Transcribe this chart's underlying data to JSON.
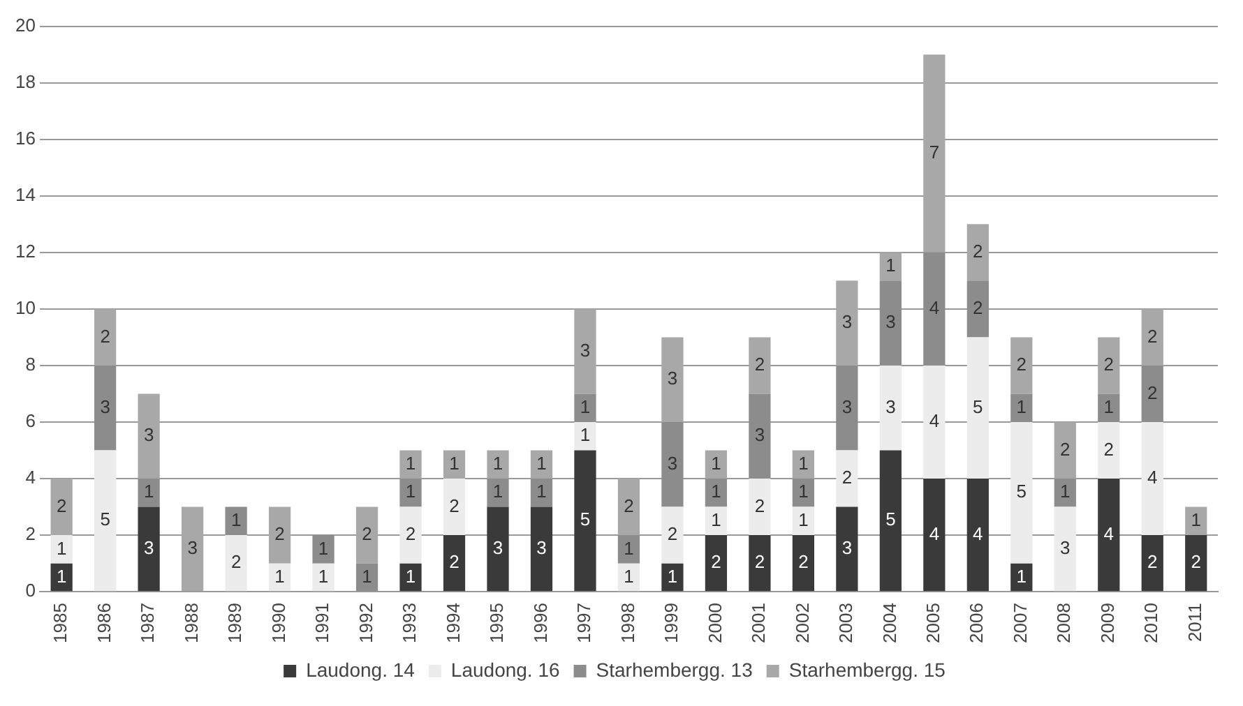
{
  "chart_data": {
    "type": "bar",
    "stacked": true,
    "data_labels": true,
    "grid": "y",
    "legend": "bottom",
    "categories": [
      "1985",
      "1986",
      "1987",
      "1988",
      "1989",
      "1990",
      "1991",
      "1992",
      "1993",
      "1994",
      "1995",
      "1996",
      "1997",
      "1998",
      "1999",
      "2000",
      "2001",
      "2002",
      "2003",
      "2004",
      "2005",
      "2006",
      "2007",
      "2008",
      "2009",
      "2010",
      "2011"
    ],
    "ylim": [
      0,
      20
    ],
    "yticks": [
      0,
      2,
      4,
      6,
      8,
      10,
      12,
      14,
      16,
      18,
      20
    ],
    "series": [
      {
        "name": "Laudong. 14",
        "color": "#3a3a3a",
        "values": [
          1,
          null,
          3,
          null,
          null,
          null,
          null,
          null,
          1,
          2,
          3,
          3,
          5,
          null,
          1,
          2,
          2,
          2,
          3,
          5,
          4,
          4,
          1,
          null,
          4,
          2,
          2
        ]
      },
      {
        "name": "Laudong. 16",
        "color": "#ececec",
        "values": [
          1,
          5,
          null,
          null,
          2,
          1,
          1,
          null,
          2,
          2,
          null,
          null,
          1,
          1,
          2,
          1,
          2,
          1,
          2,
          3,
          4,
          5,
          5,
          3,
          2,
          4,
          null
        ]
      },
      {
        "name": "Starhembergg. 13",
        "color": "#8c8c8c",
        "values": [
          null,
          3,
          1,
          null,
          1,
          null,
          1,
          1,
          1,
          null,
          1,
          1,
          1,
          1,
          3,
          1,
          3,
          1,
          3,
          3,
          4,
          2,
          1,
          1,
          1,
          2,
          null
        ]
      },
      {
        "name": "Starhembergg. 15",
        "color": "#a8a8a8",
        "values": [
          2,
          2,
          3,
          3,
          null,
          2,
          null,
          2,
          1,
          1,
          1,
          1,
          3,
          2,
          3,
          1,
          2,
          1,
          3,
          1,
          7,
          2,
          2,
          2,
          2,
          2,
          1
        ]
      }
    ]
  }
}
